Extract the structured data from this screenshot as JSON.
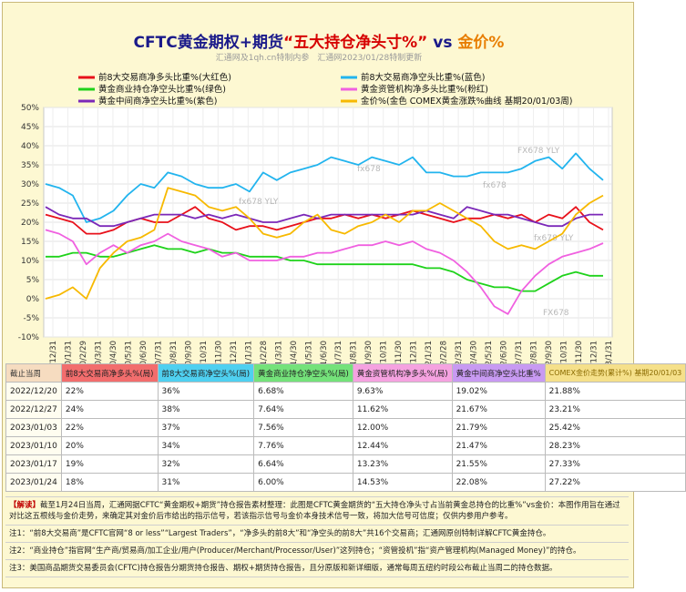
{
  "title": {
    "part1": "CFTC黄金期权+期货",
    "part2": "“五大持仓净头寸%”",
    "part3": "vs",
    "part4": "金价%"
  },
  "subtitle": "汇通网及1qh.cn特制内参　汇通网2023/01/28特制更新",
  "watermarks": [
    "FX678 YLY",
    "fx678",
    "fx678 YLY",
    "fx678",
    "FX678",
    "fx678 YLY"
  ],
  "colors": {
    "red": "#e8101a",
    "blue": "#22b4ee",
    "green": "#1ed21a",
    "pink": "#f060e0",
    "purple": "#7b28b8",
    "gold": "#f7b900"
  },
  "chart_data": {
    "type": "line",
    "ylim": [
      -10,
      50
    ],
    "yticks": [
      "-10%",
      "-5%",
      "0%",
      "5%",
      "10%",
      "15%",
      "20%",
      "25%",
      "30%",
      "35%",
      "40%",
      "45%",
      "50%"
    ],
    "xticks": [
      "2019/12/31",
      "2020/1/31",
      "2020/2/29",
      "2020/3/31",
      "2020/4/30",
      "2020/5/31",
      "2020/6/30",
      "2020/7/31",
      "2020/8/31",
      "2020/9/30",
      "2020/10/31",
      "2020/11/30",
      "2020/12/31",
      "2021/1/31",
      "2021/2/28",
      "2021/3/31",
      "2021/4/30",
      "2021/5/31",
      "2021/6/30",
      "2021/7/31",
      "2021/8/31",
      "2021/9/30",
      "2021/10/31",
      "2021/11/30",
      "2021/12/31",
      "2022/1/31",
      "2022/2/28",
      "2022/3/31",
      "2022/4/30",
      "2022/5/31",
      "2022/6/30",
      "2022/7/31",
      "2022/8/31",
      "2022/9/30",
      "2022/10/31",
      "2022/11/30",
      "2022/12/31",
      "2023/1/31"
    ],
    "legend": [
      "前8大交易商净多头比重%(大红色)",
      "前8大交易商净空头比重%(蓝色)",
      "黄金商业持仓净空头比重%(绿色)",
      "黄金资管机构净多头比重%(粉红)",
      "黄金中间商净空头比重%(紫色)",
      "金价%(金色 COMEX黄金涨跌%曲线 基期20/01/03周)"
    ],
    "series": [
      {
        "name": "前8大交易商净多头比重%(大红色)",
        "color": "red",
        "values": [
          22,
          21,
          20,
          17,
          17,
          18,
          20,
          21,
          20,
          20,
          22,
          24,
          21,
          20,
          18,
          19,
          19,
          18,
          19,
          20,
          21,
          21,
          22,
          21,
          22,
          21,
          22,
          23,
          22,
          21,
          20,
          21,
          21,
          22,
          21,
          22,
          20,
          22,
          21,
          24,
          20,
          18
        ]
      },
      {
        "name": "前8大交易商净空头比重%(蓝色)",
        "color": "blue",
        "values": [
          30,
          29,
          27,
          20,
          21,
          23,
          27,
          30,
          29,
          33,
          32,
          30,
          29,
          29,
          30,
          28,
          33,
          31,
          33,
          34,
          35,
          37,
          36,
          35,
          37,
          36,
          35,
          37,
          33,
          33,
          32,
          32,
          33,
          33,
          33,
          34,
          36,
          37,
          34,
          38,
          34,
          31
        ]
      },
      {
        "name": "黄金商业持仓净空头比重%(绿色)",
        "color": "green",
        "values": [
          11,
          11,
          12,
          12,
          11,
          11,
          12,
          13,
          14,
          13,
          13,
          12,
          13,
          12,
          12,
          11,
          11,
          11,
          10,
          10,
          9,
          9,
          9,
          9,
          9,
          9,
          9,
          9,
          8,
          8,
          7,
          5,
          4,
          3,
          3,
          2,
          2,
          4,
          6,
          7,
          6,
          6
        ]
      },
      {
        "name": "黄金资管机构净多头比重%(粉红)",
        "color": "pink",
        "values": [
          18,
          17,
          15,
          9,
          12,
          14,
          12,
          14,
          15,
          17,
          15,
          14,
          13,
          11,
          12,
          10,
          10,
          10,
          11,
          11,
          12,
          12,
          13,
          14,
          14,
          15,
          14,
          15,
          13,
          12,
          10,
          7,
          3,
          -2,
          -4,
          2,
          6,
          9,
          11,
          12,
          13,
          14.53
        ]
      },
      {
        "name": "黄金中间商净空头比重%(紫色)",
        "color": "purple",
        "values": [
          24,
          22,
          21,
          21,
          19,
          19,
          20,
          21,
          22,
          22,
          22,
          21,
          22,
          21,
          22,
          21,
          20,
          20,
          21,
          22,
          21,
          22,
          22,
          22,
          22,
          22,
          22,
          22,
          23,
          22,
          21,
          24,
          23,
          22,
          22,
          21,
          20,
          19,
          19,
          21,
          22,
          22
        ]
      },
      {
        "name": "金价%(金色 COMEX黄金涨跌%曲线 基期20/01/03周)",
        "color": "gold",
        "values": [
          0,
          1,
          3,
          0,
          8,
          12,
          15,
          16,
          18,
          29,
          28,
          27,
          24,
          23,
          24,
          21,
          17,
          16,
          17,
          20,
          22,
          18,
          17,
          19,
          20,
          22,
          20,
          23,
          23,
          25,
          23,
          21,
          19,
          15,
          13,
          14,
          13,
          15,
          17,
          22,
          25,
          27
        ]
      }
    ]
  },
  "table": {
    "headers": [
      "截止当周",
      "前8大交易商净多头%(局)",
      "前8大交易商净空头%(局)",
      "黄金商业持仓净空头%(局)",
      "黄金资管机构净多头%(局)",
      "黄金中间商净空头比重%",
      "COMEX金价走势(累计%) 基期20/01/03"
    ],
    "rows": [
      [
        "2022/12/20",
        "22%",
        "36%",
        "6.68%",
        "9.63%",
        "19.02%",
        "21.88%"
      ],
      [
        "2022/12/27",
        "24%",
        "38%",
        "7.64%",
        "11.62%",
        "21.67%",
        "23.21%"
      ],
      [
        "2023/01/03",
        "22%",
        "37%",
        "7.56%",
        "12.00%",
        "21.79%",
        "25.42%"
      ],
      [
        "2023/01/10",
        "20%",
        "34%",
        "7.76%",
        "12.44%",
        "21.47%",
        "28.23%"
      ],
      [
        "2023/01/17",
        "19%",
        "32%",
        "6.64%",
        "13.23%",
        "21.55%",
        "27.33%"
      ],
      [
        "2023/01/24",
        "18%",
        "31%",
        "6.00%",
        "14.53%",
        "22.08%",
        "27.22%"
      ]
    ]
  },
  "notes": {
    "explain_tag": "【解读】",
    "explain": "截至1月24日当周，汇通网据CFTC“黄金期权+期货”持仓报告素材整理：此图是CFTC黄金期货的“五大持仓净头寸占当前黄金总持仓的比重%”vs金价：本图作用旨在通过对比这五根线与金价走势，来确定其对金价后市给出的指示信号，若该指示信号与金价本身技术信号一致，将加大信号可信度；仅供内参用户参考。",
    "note1": "注1：“前8大交易商”是CFTC官网“8 or less”“Largest Traders”，“净多头的前8大”和“净空头的前8大”共16个交易商；汇通网原创特制详解CFTC黄金持仓。",
    "note2": "注2：“商业持仓”指官网“生产商/贸易商/加工企业/用户(Producer/Merchant/Processor/User)”这列持仓；“资管投机”指“资产管理机构(Managed Money)”的持仓。",
    "note3": "注3：美国商品期货交易委员会(CFTC)持仓报告分期货持仓报告、期权+期货持仓报告，且分原版和新详细版，通常每周五纽约时段公布截止当周二的持仓数据。"
  }
}
